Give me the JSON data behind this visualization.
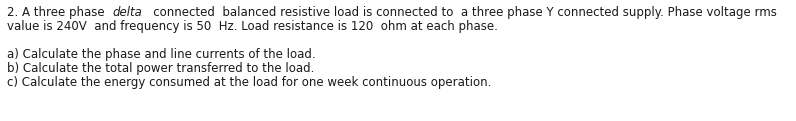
{
  "line1_normal1": "2. A three phase  ",
  "line1_italic": "delta",
  "line1_normal2": "   connected  balanced resistive load is connected to  a three phase Y connected supply. Phase voltage rms",
  "line2": "value is 240V  and frequency is 50  Hz. Load resistance is 120  ohm at each phase.",
  "line4": "a) Calculate the phase and line currents of the load.",
  "line5": "b) Calculate the total power transferred to the load.",
  "line6": "c) Calculate the energy consumed at the load for one week continuous operation.",
  "font_size": 8.5,
  "font_family": "DejaVu Sans",
  "text_color": "#1a1a1a",
  "bg_color": "#ffffff",
  "figwidth": 7.96,
  "figheight": 1.21,
  "dpi": 100
}
